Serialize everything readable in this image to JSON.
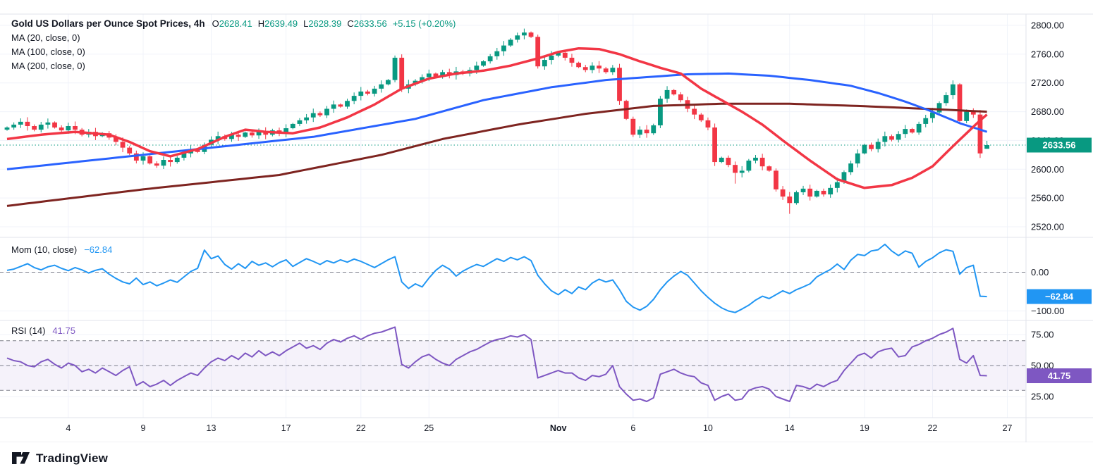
{
  "header": {
    "title": "Gold US Dollars per Ounce Spot Prices, 4h",
    "ohlc": [
      {
        "k": "O",
        "v": "2628.41"
      },
      {
        "k": "H",
        "v": "2639.49"
      },
      {
        "k": "L",
        "v": "2628.39"
      },
      {
        "k": "C",
        "v": "2633.56"
      }
    ],
    "change": "+5.15 (+0.20%)",
    "ma_labels": [
      "MA (20, close, 0)",
      "MA (100, close, 0)",
      "MA (200, close, 0)"
    ]
  },
  "panes": {
    "mom": {
      "label": "Mom (10, close)",
      "value": "−62.84"
    },
    "rsi": {
      "label": "RSI (14)",
      "value": "41.75"
    }
  },
  "axes": {
    "price_ticks": [
      "2800.00",
      "2760.00",
      "2720.00",
      "2680.00",
      "2640.00",
      "2600.00",
      "2560.00",
      "2520.00"
    ],
    "price_tick_values": [
      2800,
      2760,
      2720,
      2680,
      2640,
      2600,
      2560,
      2520
    ],
    "mom_ticks": [
      {
        "label": "0.00",
        "value": 0
      },
      {
        "label": "−100.00",
        "value": -100
      }
    ],
    "rsi_ticks": [
      {
        "label": "75.00",
        "value": 75
      },
      {
        "label": "50.00",
        "value": 50
      },
      {
        "label": "25.00",
        "value": 25
      }
    ],
    "time_ticks": [
      {
        "label": "4",
        "i": 9
      },
      {
        "label": "9",
        "i": 20
      },
      {
        "label": "13",
        "i": 30
      },
      {
        "label": "17",
        "i": 41
      },
      {
        "label": "22",
        "i": 52
      },
      {
        "label": "25",
        "i": 62
      },
      {
        "label": "Nov",
        "i": 81,
        "bold": true
      },
      {
        "label": "6",
        "i": 92
      },
      {
        "label": "10",
        "i": 103
      },
      {
        "label": "14",
        "i": 115
      },
      {
        "label": "19",
        "i": 126
      },
      {
        "label": "22",
        "i": 136
      },
      {
        "label": "27",
        "i": 147
      }
    ]
  },
  "badges": {
    "price": "2633.56",
    "mom": "−62.84",
    "rsi": "41.75"
  },
  "colors": {
    "up": "#089981",
    "down": "#F23645",
    "ma20": "#F23645",
    "ma100": "#2962FF",
    "ma200": "#7e2420",
    "mom": "#2196F3",
    "rsi": "#7E57C2",
    "grid": "#f0f3fa",
    "text": "#131722",
    "axis_line": "#e0e3eb",
    "dashed": "#6a6d78",
    "rsi_band": "rgba(126,87,194,0.08)",
    "badge_price": "#089981",
    "badge_mom": "#2196F3",
    "badge_rsi": "#7E57C2"
  },
  "logo": {
    "text": "TradingView"
  },
  "chart_data": {
    "type": "candlestick+indicators",
    "title": "Gold US Dollars per Ounce Spot Prices",
    "interval": "4h",
    "legend_last_bar": {
      "o": 2628.41,
      "h": 2639.49,
      "l": 2628.39,
      "c": 2633.56,
      "change_abs": 5.15,
      "change_pct": 0.2
    },
    "price_range": [
      2520,
      2800
    ],
    "mom_axis_range": [
      -100,
      0
    ],
    "rsi_axis_ticks": [
      75,
      50,
      25
    ],
    "rsi_band_levels": [
      70,
      50,
      30
    ],
    "current_price": 2633.56,
    "closes": [
      2658,
      2662,
      2666,
      2660,
      2655,
      2662,
      2665,
      2658,
      2654,
      2660,
      2655,
      2648,
      2652,
      2646,
      2650,
      2644,
      2638,
      2630,
      2622,
      2612,
      2618,
      2608,
      2605,
      2613,
      2610,
      2616,
      2622,
      2628,
      2624,
      2634,
      2641,
      2646,
      2642,
      2648,
      2645,
      2651,
      2647,
      2652,
      2648,
      2654,
      2650,
      2657,
      2663,
      2668,
      2672,
      2678,
      2675,
      2684,
      2690,
      2687,
      2695,
      2702,
      2708,
      2705,
      2712,
      2718,
      2724,
      2755,
      2712,
      2718,
      2723,
      2728,
      2733,
      2729,
      2735,
      2731,
      2736,
      2733,
      2738,
      2744,
      2750,
      2757,
      2764,
      2772,
      2780,
      2786,
      2790,
      2784,
      2743,
      2752,
      2758,
      2762,
      2755,
      2748,
      2742,
      2738,
      2744,
      2740,
      2735,
      2741,
      2695,
      2670,
      2648,
      2655,
      2650,
      2661,
      2698,
      2710,
      2704,
      2696,
      2684,
      2676,
      2668,
      2658,
      2610,
      2616,
      2606,
      2595,
      2598,
      2612,
      2616,
      2604,
      2598,
      2572,
      2562,
      2553,
      2568,
      2573,
      2562,
      2570,
      2565,
      2574,
      2582,
      2596,
      2608,
      2622,
      2634,
      2628,
      2638,
      2646,
      2641,
      2649,
      2656,
      2651,
      2663,
      2671,
      2679,
      2692,
      2703,
      2718,
      2667,
      2680,
      2676,
      2622,
      2634
    ],
    "wick_low_overrides": {
      "115": 2538,
      "107": 2580
    },
    "ma20_keyframes": [
      [
        0,
        2642
      ],
      [
        5,
        2648
      ],
      [
        10,
        2652
      ],
      [
        15,
        2648
      ],
      [
        18,
        2638
      ],
      [
        21,
        2625
      ],
      [
        24,
        2618
      ],
      [
        28,
        2628
      ],
      [
        32,
        2645
      ],
      [
        35,
        2655
      ],
      [
        38,
        2652
      ],
      [
        42,
        2650
      ],
      [
        46,
        2658
      ],
      [
        50,
        2672
      ],
      [
        54,
        2690
      ],
      [
        58,
        2712
      ],
      [
        62,
        2726
      ],
      [
        66,
        2733
      ],
      [
        70,
        2737
      ],
      [
        74,
        2744
      ],
      [
        78,
        2754
      ],
      [
        81,
        2763
      ],
      [
        84,
        2768
      ],
      [
        87,
        2767
      ],
      [
        90,
        2760
      ],
      [
        93,
        2750
      ],
      [
        96,
        2741
      ],
      [
        99,
        2733
      ],
      [
        102,
        2712
      ],
      [
        105,
        2696
      ],
      [
        108,
        2680
      ],
      [
        111,
        2662
      ],
      [
        114,
        2640
      ],
      [
        118,
        2612
      ],
      [
        122,
        2586
      ],
      [
        126,
        2574
      ],
      [
        130,
        2578
      ],
      [
        133,
        2588
      ],
      [
        136,
        2604
      ],
      [
        139,
        2632
      ],
      [
        141,
        2650
      ],
      [
        143,
        2668
      ],
      [
        144,
        2676
      ]
    ],
    "ma100_keyframes": [
      [
        0,
        2600
      ],
      [
        15,
        2615
      ],
      [
        30,
        2630
      ],
      [
        45,
        2645
      ],
      [
        60,
        2670
      ],
      [
        70,
        2696
      ],
      [
        80,
        2714
      ],
      [
        88,
        2724
      ],
      [
        94,
        2728
      ],
      [
        100,
        2732
      ],
      [
        106,
        2733
      ],
      [
        112,
        2730
      ],
      [
        118,
        2724
      ],
      [
        124,
        2716
      ],
      [
        128,
        2706
      ],
      [
        132,
        2694
      ],
      [
        136,
        2680
      ],
      [
        140,
        2664
      ],
      [
        144,
        2652
      ]
    ],
    "ma200_keyframes": [
      [
        0,
        2549
      ],
      [
        20,
        2572
      ],
      [
        40,
        2592
      ],
      [
        55,
        2620
      ],
      [
        64,
        2642
      ],
      [
        75,
        2662
      ],
      [
        85,
        2677
      ],
      [
        95,
        2688
      ],
      [
        105,
        2691
      ],
      [
        115,
        2691
      ],
      [
        125,
        2688
      ],
      [
        135,
        2684
      ],
      [
        144,
        2680
      ]
    ],
    "momentum": [
      5,
      8,
      15,
      22,
      12,
      6,
      14,
      18,
      10,
      4,
      12,
      6,
      -2,
      5,
      9,
      -5,
      -16,
      -25,
      -30,
      -15,
      -32,
      -25,
      -35,
      -28,
      -20,
      -26,
      -12,
      2,
      10,
      57,
      35,
      42,
      20,
      8,
      22,
      10,
      28,
      18,
      24,
      14,
      25,
      32,
      15,
      25,
      35,
      28,
      20,
      30,
      24,
      32,
      26,
      34,
      28,
      20,
      12,
      22,
      32,
      40,
      -25,
      -42,
      -30,
      -38,
      -15,
      5,
      18,
      8,
      -10,
      3,
      12,
      20,
      15,
      25,
      35,
      28,
      38,
      32,
      40,
      30,
      -8,
      -30,
      -48,
      -58,
      -45,
      -55,
      -38,
      -45,
      -28,
      -18,
      -25,
      -20,
      -45,
      -75,
      -90,
      -98,
      -88,
      -70,
      -45,
      -25,
      -10,
      2,
      -8,
      -28,
      -48,
      -65,
      -80,
      -92,
      -100,
      -104,
      -95,
      -85,
      -72,
      -62,
      -68,
      -58,
      -48,
      -55,
      -45,
      -38,
      -30,
      -12,
      -2,
      7,
      21,
      7,
      31,
      46,
      43,
      55,
      58,
      72,
      55,
      43,
      55,
      49,
      13,
      28,
      37,
      50,
      58,
      54,
      -5,
      12,
      18,
      -62,
      -62.84
    ],
    "rsi": [
      56,
      54,
      53,
      50,
      49,
      53,
      55,
      51,
      48,
      52,
      50,
      45,
      47,
      44,
      48,
      45,
      42,
      46,
      49,
      34,
      37,
      33,
      35,
      38,
      34,
      38,
      41,
      44,
      42,
      48,
      53,
      56,
      54,
      58,
      55,
      60,
      57,
      62,
      58,
      61,
      58,
      62,
      65,
      68,
      64,
      66,
      63,
      68,
      71,
      69,
      72,
      74,
      71,
      74,
      76,
      77,
      79,
      81,
      51,
      48,
      53,
      57,
      59,
      55,
      52,
      50,
      55,
      58,
      61,
      63,
      66,
      69,
      71,
      72,
      74,
      73,
      75,
      71,
      40,
      42,
      44,
      46,
      44,
      44,
      40,
      38,
      42,
      41,
      43,
      50,
      33,
      27,
      22,
      23,
      21,
      24,
      43,
      45,
      47,
      44,
      42,
      41,
      36,
      34,
      22,
      25,
      27,
      22,
      23,
      30,
      32,
      33,
      31,
      25,
      23,
      21,
      34,
      33,
      31,
      35,
      33,
      36,
      38,
      46,
      52,
      58,
      60,
      56,
      61,
      63,
      64,
      57,
      58,
      65,
      67,
      70,
      72,
      75,
      77,
      80,
      55,
      52,
      58,
      42,
      41.75
    ]
  }
}
